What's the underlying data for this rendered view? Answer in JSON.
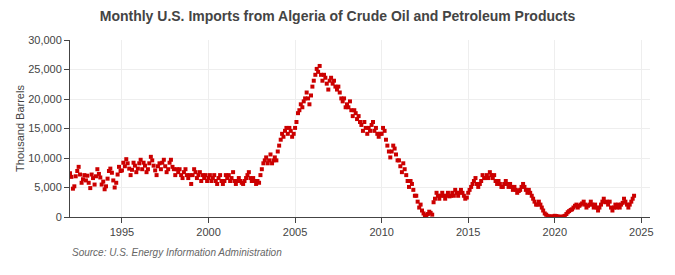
{
  "chart_data": {
    "type": "scatter",
    "title": "Monthly U.S. Imports from Algeria of Crude Oil and Petroleum Products",
    "y_label": "Thousand Barrels",
    "annotations": [
      "Source: U.S. Energy Information Administration"
    ],
    "color": "#cc0000",
    "marker": "square",
    "grid": true,
    "xlim": [
      1992.0,
      2025.5
    ],
    "xticks": [
      1995,
      2000,
      2005,
      2010,
      2015,
      2020,
      2025
    ],
    "ylim": [
      0,
      30000
    ],
    "yticks": [
      0,
      {
        "value": 5000,
        "label": "5,000"
      },
      {
        "value": 10000,
        "label": "10,000"
      },
      {
        "value": 15000,
        "label": "15,000"
      },
      {
        "value": 20000,
        "label": "20,000"
      },
      {
        "value": 25000,
        "label": "25,000"
      },
      {
        "value": 30000,
        "label": "30,000"
      }
    ],
    "x": [
      1992.0,
      1992.08,
      1992.17,
      1992.25,
      1992.33,
      1992.42,
      1992.5,
      1992.58,
      1992.67,
      1992.75,
      1992.83,
      1992.92,
      1993.0,
      1993.08,
      1993.17,
      1993.25,
      1993.33,
      1993.42,
      1993.5,
      1993.58,
      1993.67,
      1993.75,
      1993.83,
      1993.92,
      1994.0,
      1994.08,
      1994.17,
      1994.25,
      1994.33,
      1994.42,
      1994.5,
      1994.58,
      1994.67,
      1994.75,
      1994.83,
      1994.92,
      1995.0,
      1995.08,
      1995.17,
      1995.25,
      1995.33,
      1995.42,
      1995.5,
      1995.58,
      1995.67,
      1995.75,
      1995.83,
      1995.92,
      1996.0,
      1996.08,
      1996.17,
      1996.25,
      1996.33,
      1996.42,
      1996.5,
      1996.58,
      1996.67,
      1996.75,
      1996.83,
      1996.92,
      1997.0,
      1997.08,
      1997.17,
      1997.25,
      1997.33,
      1997.42,
      1997.5,
      1997.58,
      1997.67,
      1997.75,
      1997.83,
      1997.92,
      1998.0,
      1998.08,
      1998.17,
      1998.25,
      1998.33,
      1998.42,
      1998.5,
      1998.58,
      1998.67,
      1998.75,
      1998.83,
      1998.92,
      1999.0,
      1999.08,
      1999.17,
      1999.25,
      1999.33,
      1999.42,
      1999.5,
      1999.58,
      1999.67,
      1999.75,
      1999.83,
      1999.92,
      2000.0,
      2000.08,
      2000.17,
      2000.25,
      2000.33,
      2000.42,
      2000.5,
      2000.58,
      2000.67,
      2000.75,
      2000.83,
      2000.92,
      2001.0,
      2001.08,
      2001.17,
      2001.25,
      2001.33,
      2001.42,
      2001.5,
      2001.58,
      2001.67,
      2001.75,
      2001.83,
      2001.92,
      2002.0,
      2002.08,
      2002.17,
      2002.25,
      2002.33,
      2002.42,
      2002.5,
      2002.58,
      2002.67,
      2002.75,
      2002.83,
      2002.92,
      2003.0,
      2003.08,
      2003.17,
      2003.25,
      2003.33,
      2003.42,
      2003.5,
      2003.58,
      2003.67,
      2003.75,
      2003.83,
      2003.92,
      2004.0,
      2004.08,
      2004.17,
      2004.25,
      2004.33,
      2004.42,
      2004.5,
      2004.58,
      2004.67,
      2004.75,
      2004.83,
      2004.92,
      2005.0,
      2005.08,
      2005.17,
      2005.25,
      2005.33,
      2005.42,
      2005.5,
      2005.58,
      2005.67,
      2005.75,
      2005.83,
      2005.92,
      2006.0,
      2006.08,
      2006.17,
      2006.25,
      2006.33,
      2006.42,
      2006.5,
      2006.58,
      2006.67,
      2006.75,
      2006.83,
      2006.92,
      2007.0,
      2007.08,
      2007.17,
      2007.25,
      2007.33,
      2007.42,
      2007.5,
      2007.58,
      2007.67,
      2007.75,
      2007.83,
      2007.92,
      2008.0,
      2008.08,
      2008.17,
      2008.25,
      2008.33,
      2008.42,
      2008.5,
      2008.58,
      2008.67,
      2008.75,
      2008.83,
      2008.92,
      2009.0,
      2009.08,
      2009.17,
      2009.25,
      2009.33,
      2009.42,
      2009.5,
      2009.58,
      2009.67,
      2009.75,
      2009.83,
      2009.92,
      2010.0,
      2010.08,
      2010.17,
      2010.25,
      2010.33,
      2010.42,
      2010.5,
      2010.58,
      2010.67,
      2010.75,
      2010.83,
      2010.92,
      2011.0,
      2011.08,
      2011.17,
      2011.25,
      2011.33,
      2011.42,
      2011.5,
      2011.58,
      2011.67,
      2011.75,
      2011.83,
      2011.92,
      2012.0,
      2012.08,
      2012.17,
      2012.25,
      2012.33,
      2012.42,
      2012.5,
      2012.58,
      2012.67,
      2012.75,
      2012.83,
      2012.92,
      2013.0,
      2013.08,
      2013.17,
      2013.25,
      2013.33,
      2013.42,
      2013.5,
      2013.58,
      2013.67,
      2013.75,
      2013.83,
      2013.92,
      2014.0,
      2014.08,
      2014.17,
      2014.25,
      2014.33,
      2014.42,
      2014.5,
      2014.58,
      2014.67,
      2014.75,
      2014.83,
      2014.92,
      2015.0,
      2015.08,
      2015.17,
      2015.25,
      2015.33,
      2015.42,
      2015.5,
      2015.58,
      2015.67,
      2015.75,
      2015.83,
      2015.92,
      2016.0,
      2016.08,
      2016.17,
      2016.25,
      2016.33,
      2016.42,
      2016.5,
      2016.58,
      2016.67,
      2016.75,
      2016.83,
      2016.92,
      2017.0,
      2017.08,
      2017.17,
      2017.25,
      2017.33,
      2017.42,
      2017.5,
      2017.58,
      2017.67,
      2017.75,
      2017.83,
      2017.92,
      2018.0,
      2018.08,
      2018.17,
      2018.25,
      2018.33,
      2018.42,
      2018.5,
      2018.58,
      2018.67,
      2018.75,
      2018.83,
      2018.92,
      2019.0,
      2019.08,
      2019.17,
      2019.25,
      2019.33,
      2019.42,
      2019.5,
      2019.58,
      2019.67,
      2019.75,
      2019.83,
      2019.92,
      2020.0,
      2020.08,
      2020.17,
      2020.25,
      2020.33,
      2020.42,
      2020.5,
      2020.58,
      2020.67,
      2020.75,
      2020.83,
      2020.92,
      2021.0,
      2021.08,
      2021.17,
      2021.25,
      2021.33,
      2021.42,
      2021.5,
      2021.58,
      2021.67,
      2021.75,
      2021.83,
      2021.92,
      2022.0,
      2022.08,
      2022.17,
      2022.25,
      2022.33,
      2022.42,
      2022.5,
      2022.58,
      2022.67,
      2022.75,
      2022.83,
      2022.92,
      2023.0,
      2023.08,
      2023.17,
      2023.25,
      2023.33,
      2023.42,
      2023.5,
      2023.58,
      2023.67,
      2023.75,
      2023.83,
      2023.92,
      2024.0,
      2024.08,
      2024.17,
      2024.25,
      2024.33,
      2024.42,
      2024.5,
      2024.58
    ],
    "values": [
      7400,
      6800,
      4800,
      5200,
      6900,
      7800,
      8500,
      7200,
      5800,
      6400,
      7100,
      6200,
      7000,
      5800,
      4900,
      7200,
      6600,
      5500,
      6900,
      8100,
      7300,
      6700,
      5500,
      6000,
      4700,
      5200,
      6500,
      7800,
      8200,
      7500,
      6200,
      5000,
      5800,
      7200,
      8500,
      7800,
      7900,
      9200,
      8600,
      9800,
      9100,
      8200,
      7100,
      8000,
      9200,
      8700,
      7600,
      8200,
      9100,
      9700,
      8100,
      9200,
      8700,
      7600,
      8100,
      9100,
      10200,
      9600,
      8700,
      7900,
      7100,
      8600,
      9100,
      8100,
      9200,
      9700,
      8600,
      7600,
      8100,
      9200,
      9700,
      8500,
      8100,
      7100,
      8100,
      7600,
      8100,
      7100,
      6600,
      7600,
      8100,
      7100,
      6600,
      7100,
      5600,
      7100,
      8100,
      7600,
      6600,
      7100,
      7600,
      6100,
      7100,
      6600,
      7100,
      6100,
      6600,
      7100,
      6100,
      6600,
      7100,
      6100,
      5600,
      6600,
      7100,
      6100,
      5600,
      6100,
      7100,
      6600,
      7100,
      6100,
      6600,
      7600,
      6100,
      5600,
      6100,
      6600,
      6100,
      5800,
      5600,
      6100,
      6600,
      7100,
      7600,
      6600,
      6100,
      6600,
      6100,
      5600,
      6100,
      5800,
      7100,
      8100,
      9100,
      9600,
      10100,
      9100,
      9600,
      10600,
      9100,
      9600,
      10100,
      9600,
      11100,
      12100,
      13100,
      14100,
      13600,
      14600,
      15100,
      14100,
      15100,
      14600,
      13600,
      14100,
      15100,
      16100,
      17600,
      18100,
      19100,
      18600,
      19600,
      20100,
      21100,
      20100,
      19100,
      20600,
      22100,
      23100,
      24100,
      25100,
      24600,
      25600,
      24100,
      23100,
      24100,
      23600,
      22600,
      21600,
      23100,
      23600,
      22600,
      23100,
      22100,
      21600,
      22100,
      21100,
      20100,
      19600,
      20100,
      18600,
      19100,
      18600,
      19600,
      18100,
      17100,
      18100,
      17600,
      16600,
      17100,
      16100,
      15600,
      14600,
      16100,
      15100,
      14100,
      15100,
      14600,
      15600,
      16100,
      14600,
      15100,
      14100,
      13600,
      14100,
      14100,
      15100,
      14600,
      13100,
      12100,
      11100,
      10100,
      11100,
      12100,
      11600,
      10600,
      9600,
      9600,
      8600,
      7600,
      9100,
      8100,
      7100,
      6100,
      5100,
      6100,
      5600,
      4600,
      3600,
      3600,
      2600,
      1600,
      2100,
      1100,
      600,
      300,
      200,
      500,
      900,
      700,
      400,
      2500,
      3100,
      4100,
      3600,
      3100,
      3600,
      4100,
      3600,
      3100,
      3600,
      4100,
      3500,
      3600,
      4100,
      3600,
      4600,
      4100,
      3600,
      4100,
      4600,
      4100,
      3600,
      3100,
      3300,
      4100,
      4600,
      5100,
      5600,
      6100,
      6600,
      5600,
      5100,
      5600,
      6100,
      7100,
      6600,
      6600,
      7100,
      6600,
      7600,
      7100,
      6600,
      7100,
      6100,
      5600,
      6100,
      5600,
      5100,
      5100,
      5600,
      6100,
      5600,
      5100,
      5600,
      5100,
      4600,
      5100,
      4600,
      4100,
      4400,
      4600,
      5100,
      5600,
      5100,
      4600,
      4100,
      4600,
      4100,
      3600,
      3100,
      2600,
      2100,
      2100,
      2600,
      2100,
      1600,
      1100,
      600,
      400,
      200,
      100,
      50,
      100,
      80,
      200,
      150,
      100,
      50,
      10,
      50,
      100,
      200,
      500,
      800,
      1000,
      1200,
      1300,
      1600,
      1900,
      2100,
      1600,
      1900,
      2100,
      2300,
      2600,
      2100,
      1600,
      1900,
      2100,
      2600,
      2100,
      1600,
      2100,
      1600,
      1100,
      1600,
      2100,
      2600,
      3100,
      2500,
      2600,
      2100,
      2600,
      1600,
      1100,
      1600,
      2100,
      1600,
      2100,
      1600,
      2100,
      2400,
      3100,
      2600,
      2100,
      1600,
      2100,
      2600,
      3100,
      3600
    ]
  }
}
